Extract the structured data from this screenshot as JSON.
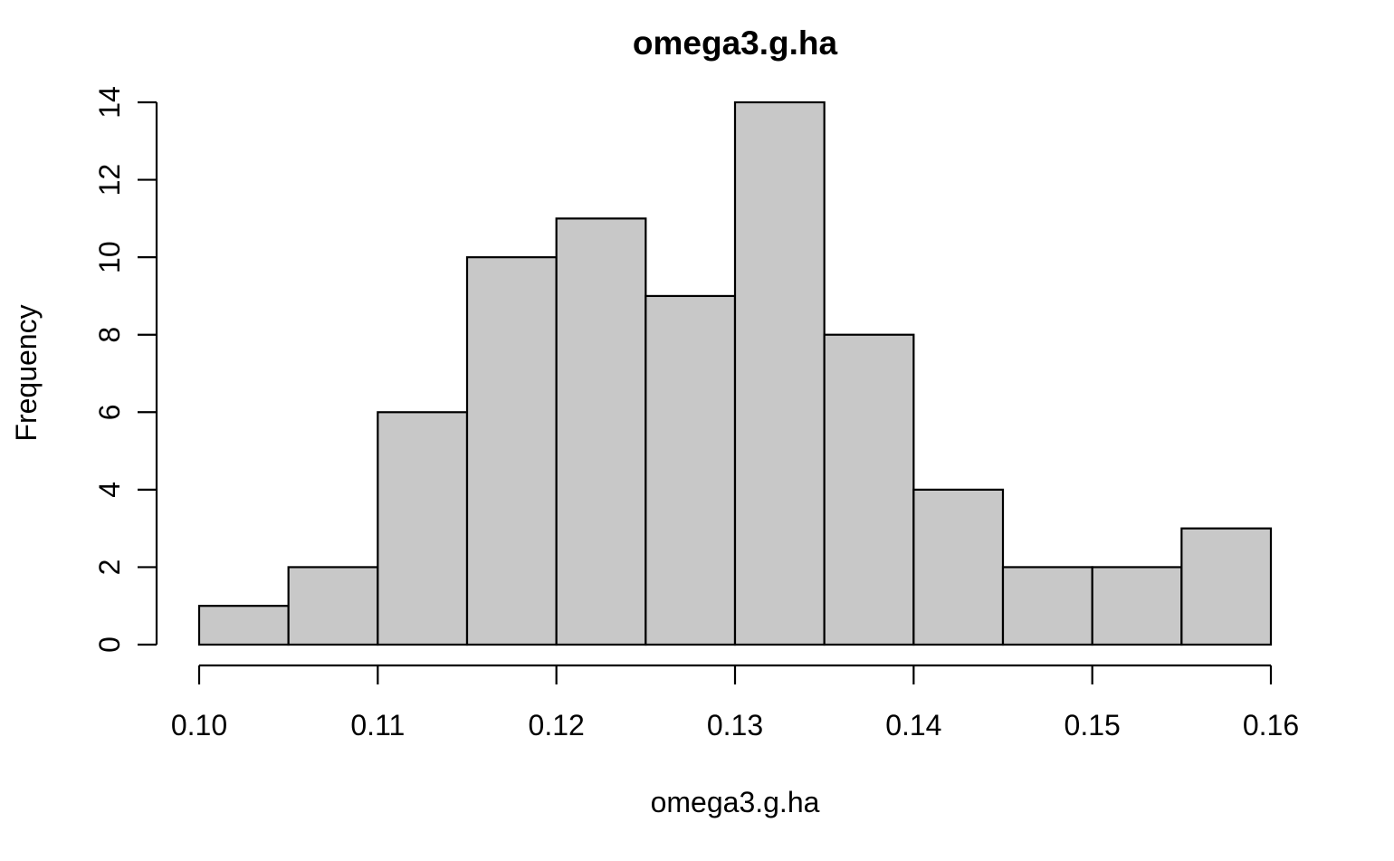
{
  "chart_data": {
    "type": "bar",
    "subtype": "histogram",
    "title": "omega3.g.ha",
    "xlabel": "omega3.g.ha",
    "ylabel": "Frequency",
    "bin_edges": [
      0.1,
      0.105,
      0.11,
      0.115,
      0.12,
      0.125,
      0.13,
      0.135,
      0.14,
      0.145,
      0.15,
      0.155,
      0.16
    ],
    "values": [
      1,
      2,
      6,
      10,
      11,
      9,
      14,
      8,
      4,
      2,
      2,
      3
    ],
    "xlim": [
      0.1,
      0.16
    ],
    "ylim": [
      0,
      14
    ],
    "x_ticks": [
      0.1,
      0.11,
      0.12,
      0.13,
      0.14,
      0.15,
      0.16
    ],
    "x_tick_labels": [
      "0.10",
      "0.11",
      "0.12",
      "0.13",
      "0.14",
      "0.15",
      "0.16"
    ],
    "y_ticks": [
      0,
      2,
      4,
      6,
      8,
      10,
      12,
      14
    ],
    "y_tick_labels": [
      "0",
      "2",
      "4",
      "6",
      "8",
      "10",
      "12",
      "14"
    ],
    "bar_color": "#c8c8c8",
    "edge_color": "#000000",
    "grid": false,
    "legend": "none"
  }
}
